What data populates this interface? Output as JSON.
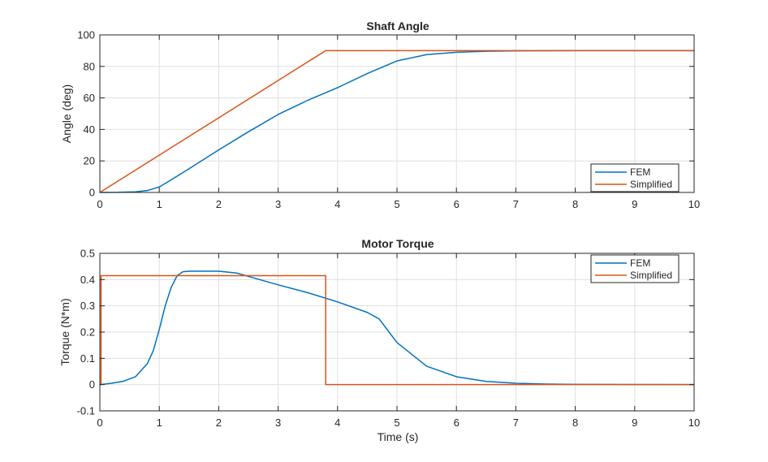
{
  "colors": {
    "fem": "#0072BD",
    "simplified": "#D95319",
    "axes": "#262626",
    "grid": "#dfdfdf"
  },
  "chart_data": [
    {
      "type": "line",
      "title": "Shaft Angle",
      "xlabel": "",
      "ylabel": "Angle (deg)",
      "xlim": [
        0,
        10
      ],
      "ylim": [
        0,
        100
      ],
      "xticks": [
        0,
        1,
        2,
        3,
        4,
        5,
        6,
        7,
        8,
        9,
        10
      ],
      "yticks": [
        0,
        20,
        40,
        60,
        80,
        100
      ],
      "xtick_labels": [
        "0",
        "1",
        "2",
        "3",
        "4",
        "5",
        "6",
        "7",
        "8",
        "9",
        "10"
      ],
      "ytick_labels": [
        "0",
        "20",
        "40",
        "60",
        "80",
        "100"
      ],
      "grid": true,
      "legend": {
        "position": "bottom-right",
        "entries": [
          "FEM",
          "Simplified"
        ]
      },
      "series": [
        {
          "name": "FEM",
          "x": [
            0,
            0.3,
            0.6,
            0.8,
            1.0,
            1.2,
            1.5,
            2.0,
            2.5,
            3.0,
            3.5,
            4.0,
            4.5,
            5.0,
            5.5,
            6.0,
            6.5,
            7.0,
            8.0,
            10.0
          ],
          "y": [
            0,
            0.05,
            0.4,
            1.2,
            3.5,
            8,
            15,
            27,
            38.5,
            49.5,
            58.5,
            66.5,
            75.5,
            83.5,
            87.5,
            89,
            89.6,
            89.9,
            90,
            90
          ]
        },
        {
          "name": "Simplified",
          "x": [
            0,
            3.8,
            10
          ],
          "y": [
            0,
            90,
            90
          ]
        }
      ]
    },
    {
      "type": "line",
      "title": "Motor Torque",
      "xlabel": "Time (s)",
      "ylabel": "Torque (N*m)",
      "xlim": [
        0,
        10
      ],
      "ylim": [
        -0.1,
        0.5
      ],
      "xticks": [
        0,
        1,
        2,
        3,
        4,
        5,
        6,
        7,
        8,
        9,
        10
      ],
      "yticks": [
        -0.1,
        0,
        0.1,
        0.2,
        0.3,
        0.4,
        0.5
      ],
      "xtick_labels": [
        "0",
        "1",
        "2",
        "3",
        "4",
        "5",
        "6",
        "7",
        "8",
        "9",
        "10"
      ],
      "ytick_labels": [
        "-0.1",
        "0",
        "0.1",
        "0.2",
        "0.3",
        "0.4",
        "0.5"
      ],
      "grid": true,
      "legend": {
        "position": "top-right",
        "entries": [
          "FEM",
          "Simplified"
        ]
      },
      "series": [
        {
          "name": "FEM",
          "x": [
            0,
            0.2,
            0.4,
            0.6,
            0.8,
            0.9,
            1.0,
            1.1,
            1.2,
            1.3,
            1.4,
            1.5,
            2.0,
            2.3,
            2.5,
            3.0,
            3.5,
            4.0,
            4.5,
            4.7,
            5.0,
            5.5,
            6.0,
            6.5,
            7.0,
            7.5,
            8.0,
            10.0
          ],
          "y": [
            0,
            0.005,
            0.013,
            0.03,
            0.08,
            0.13,
            0.21,
            0.3,
            0.37,
            0.415,
            0.43,
            0.432,
            0.432,
            0.425,
            0.412,
            0.38,
            0.35,
            0.315,
            0.275,
            0.25,
            0.16,
            0.07,
            0.03,
            0.012,
            0.005,
            0.002,
            0.001,
            0
          ]
        },
        {
          "name": "Simplified",
          "x": [
            0,
            0.02,
            0.02,
            3.8,
            3.8,
            10
          ],
          "y": [
            0,
            0,
            0.415,
            0.415,
            0,
            0
          ]
        }
      ]
    }
  ]
}
